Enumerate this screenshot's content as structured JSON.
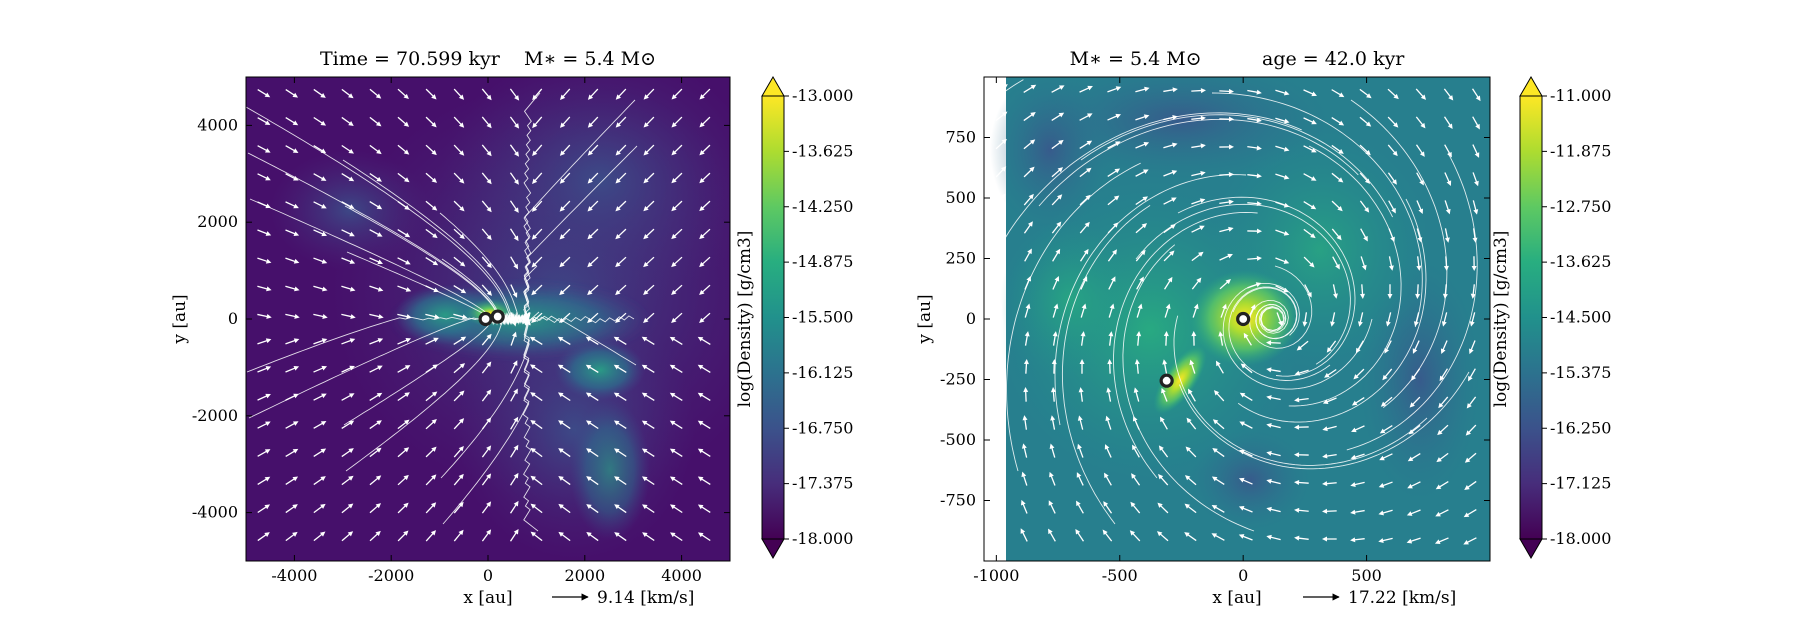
{
  "chart_data": [
    {
      "type": "heatmap",
      "title": "Time = 70.599 kyr    M∗ = 5.4 M⊙",
      "xlabel": "x [au]",
      "ylabel": "y [au]",
      "xlim": [
        -5000,
        5000
      ],
      "ylim": [
        -5000,
        5000
      ],
      "x_ticks": [
        -4000,
        -2000,
        0,
        2000,
        4000
      ],
      "x_tick_labels": [
        "-4000",
        "-2000",
        "0",
        "2000",
        "4000"
      ],
      "y_ticks": [
        -4000,
        -2000,
        0,
        2000,
        4000
      ],
      "y_tick_labels": [
        "-4000",
        "-2000",
        "0",
        "2000",
        "4000"
      ],
      "colormap": "viridis",
      "colorbar_label": "log(Density) [g/cm3]",
      "colorbar_range": [
        -18.0,
        -13.0
      ],
      "colorbar_ticks": [
        -13.0,
        -13.625,
        -14.25,
        -14.875,
        -15.5,
        -16.125,
        -16.75,
        -17.375,
        -18.0
      ],
      "colorbar_tick_labels": [
        "-13.000",
        "-13.625",
        "-14.250",
        "-14.875",
        "-15.500",
        "-16.125",
        "-16.750",
        "-17.375",
        "-18.000"
      ],
      "velocity_key_label": "9.14 [km/s]",
      "overlays": [
        "velocity streamlines",
        "velocity arrows"
      ],
      "stars": [
        {
          "x": -50,
          "y": 0
        },
        {
          "x": 200,
          "y": 50
        }
      ],
      "color_ring": "#ffffff",
      "color_star": "#222222"
    },
    {
      "type": "heatmap",
      "title": "M∗ = 5.4 M⊙          age = 42.0 kyr",
      "xlabel": "x [au]",
      "ylabel": "y [au]",
      "xlim": [
        -1050,
        1000
      ],
      "ylim": [
        -1000,
        1000
      ],
      "x_ticks": [
        -1000,
        -500,
        0,
        500
      ],
      "x_tick_labels": [
        "-1000",
        "-500",
        "0",
        "500"
      ],
      "y_ticks": [
        -750,
        -500,
        -250,
        0,
        250,
        500,
        750
      ],
      "y_tick_labels": [
        "-750",
        "-500",
        "-250",
        "0",
        "250",
        "500",
        "750"
      ],
      "colormap": "viridis",
      "colorbar_label": "log(Density) [g/cm3]",
      "colorbar_range": [
        -18.0,
        -11.0
      ],
      "colorbar_ticks": [
        -11.0,
        -11.875,
        -12.75,
        -13.625,
        -14.5,
        -15.375,
        -16.25,
        -17.125,
        -18.0
      ],
      "colorbar_tick_labels": [
        "-11.000",
        "-11.875",
        "-12.750",
        "-13.625",
        "-14.500",
        "-15.375",
        "-16.250",
        "-17.125",
        "-18.000"
      ],
      "velocity_key_label": "17.22 [km/s]",
      "overlays": [
        "velocity streamlines",
        "velocity arrows"
      ],
      "stars": [
        {
          "x": 0,
          "y": 0
        },
        {
          "x": -310,
          "y": -255
        }
      ],
      "color_ring": "#ffffff",
      "color_star": "#222222"
    }
  ]
}
